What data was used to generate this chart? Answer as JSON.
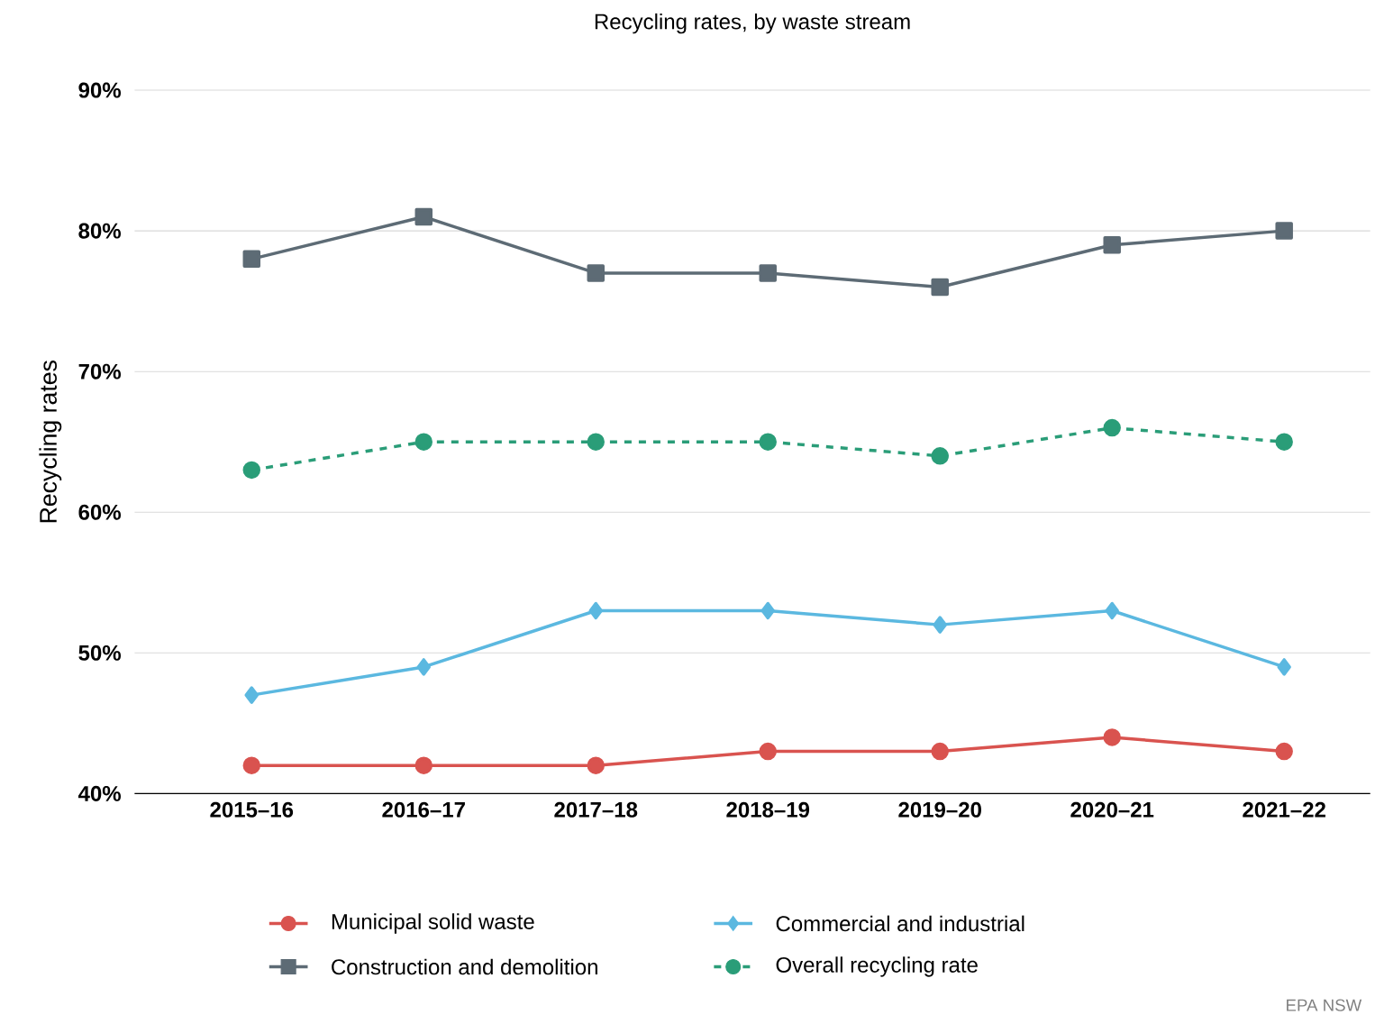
{
  "chart_data": {
    "type": "line",
    "title": "Recycling rates, by waste stream",
    "ylabel": "Recycling rates",
    "categories": [
      "2015–16",
      "2016–17",
      "2017–18",
      "2018–19",
      "2019–20",
      "2020–21",
      "2021–22"
    ],
    "series": [
      {
        "name": "Municipal solid waste",
        "color": "#d9534f",
        "marker": "circle",
        "line_style": "solid",
        "values": [
          42,
          42,
          42,
          43,
          43,
          44,
          43
        ]
      },
      {
        "name": "Commercial and industrial",
        "color": "#5bb8e0",
        "marker": "diamond",
        "line_style": "solid",
        "values": [
          47,
          49,
          53,
          53,
          52,
          53,
          49
        ]
      },
      {
        "name": "Construction and demolition",
        "color": "#5d6b75",
        "marker": "square",
        "line_style": "solid",
        "values": [
          78,
          81,
          77,
          77,
          76,
          79,
          80
        ]
      },
      {
        "name": "Overall recycling rate",
        "color": "#2a9d78",
        "marker": "circle",
        "line_style": "dashed",
        "values": [
          63,
          65,
          65,
          65,
          64,
          66,
          65
        ]
      }
    ],
    "ylim": [
      40,
      90
    ],
    "yticks": [
      {
        "value": 40,
        "label": "40%"
      },
      {
        "value": 50,
        "label": "50%"
      },
      {
        "value": 60,
        "label": "60%"
      },
      {
        "value": 70,
        "label": "70%"
      },
      {
        "value": 80,
        "label": "80%"
      },
      {
        "value": 90,
        "label": "90%"
      }
    ],
    "grid": "y",
    "legend": "bottom",
    "annotations": [
      "EPA NSW"
    ]
  }
}
